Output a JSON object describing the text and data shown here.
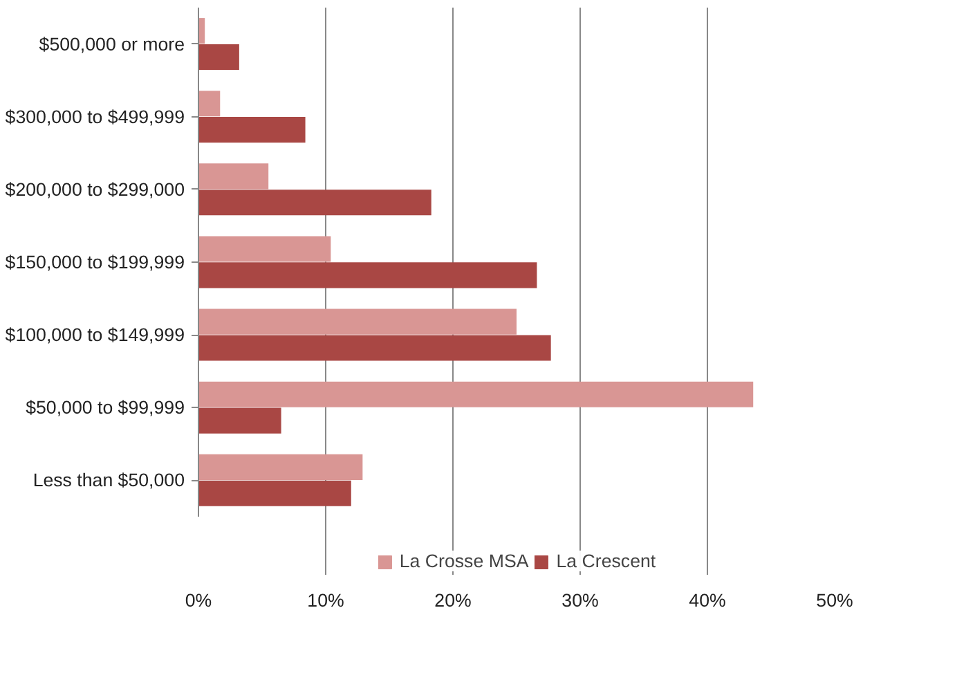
{
  "chart_data": {
    "type": "bar",
    "orientation": "horizontal",
    "categories": [
      "$500,000 or more",
      "$300,000 to $499,999",
      "$200,000 to $299,000",
      "$150,000 to $199,999",
      "$100,000 to $149,999",
      "$50,000 to $99,999",
      "Less than $50,000"
    ],
    "series": [
      {
        "name": "La Crosse MSA",
        "color": "#d99694",
        "values": [
          0.5,
          1.7,
          5.5,
          10.4,
          25,
          43.6,
          12.9
        ]
      },
      {
        "name": "La Crescent",
        "color": "#a94744",
        "values": [
          3.2,
          8.4,
          18.3,
          26.6,
          27.7,
          6.5,
          12
        ]
      }
    ],
    "xlim": [
      0,
      50
    ],
    "xticks": [
      {
        "value": 0,
        "label": "0%"
      },
      {
        "value": 10,
        "label": "10%"
      },
      {
        "value": 20,
        "label": "20%"
      },
      {
        "value": 30,
        "label": "30%"
      },
      {
        "value": 40,
        "label": "40%"
      },
      {
        "value": 50,
        "label": "50%"
      }
    ],
    "grid": "x",
    "legend": "bottom"
  }
}
